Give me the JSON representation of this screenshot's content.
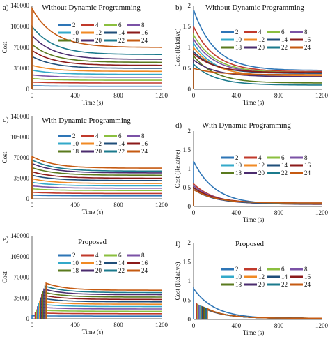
{
  "colors": [
    "#2e75b6",
    "#c0392b",
    "#8bbf3f",
    "#7b52a6",
    "#33a9c9",
    "#f08a24",
    "#1f4e79",
    "#8b1a1a",
    "#5a7a1e",
    "#4b2c6e",
    "#1b7a8c",
    "#c55a11"
  ],
  "legend_labels": [
    "2",
    "4",
    "6",
    "8",
    "10",
    "12",
    "14",
    "16",
    "18",
    "20",
    "22",
    "24"
  ],
  "chart_data": [
    {
      "type": "line",
      "panel_label": "a)",
      "title": "Without Dynamic Programming",
      "xlabel": "Time (s)",
      "ylabel": "Cost",
      "xlim": [
        0,
        1200
      ],
      "ylim": [
        0,
        140000
      ],
      "xticks": [
        "0",
        "400",
        "800",
        "1200"
      ],
      "yticks": [
        "0",
        "35000",
        "70000",
        "105000",
        "140000"
      ],
      "legend_position": "top-right",
      "series": [
        {
          "name": "2",
          "start": 6000,
          "end": 5000
        },
        {
          "name": "4",
          "start": 12000,
          "end": 10500
        },
        {
          "name": "6",
          "start": 18000,
          "end": 15000
        },
        {
          "name": "8",
          "start": 24000,
          "end": 20000
        },
        {
          "name": "10",
          "start": 32000,
          "end": 25000
        },
        {
          "name": "12",
          "start": 40000,
          "end": 30000
        },
        {
          "name": "14",
          "start": 55000,
          "end": 35000
        },
        {
          "name": "16",
          "start": 65000,
          "end": 40000
        },
        {
          "name": "18",
          "start": 75000,
          "end": 45000
        },
        {
          "name": "20",
          "start": 90000,
          "end": 50000
        },
        {
          "name": "22",
          "start": 105000,
          "end": 58000
        },
        {
          "name": "24",
          "start": 135000,
          "end": 70000
        }
      ]
    },
    {
      "type": "line",
      "panel_label": "b)",
      "title": "Without Dynamic Programming",
      "xlabel": "Time (s)",
      "ylabel": "Cost (Relative)",
      "xlim": [
        0,
        1200
      ],
      "ylim": [
        0,
        2
      ],
      "xticks": [
        "0",
        "400",
        "800",
        "1200"
      ],
      "yticks": [
        "0",
        "0.5",
        "1",
        "1.5",
        "2"
      ],
      "legend_position": "top-right",
      "series": [
        {
          "name": "2",
          "start": 1.9,
          "end": 0.45
        },
        {
          "name": "4",
          "start": 1.5,
          "end": 0.42
        },
        {
          "name": "6",
          "start": 1.3,
          "end": 0.4
        },
        {
          "name": "8",
          "start": 1.2,
          "end": 0.38
        },
        {
          "name": "10",
          "start": 1.1,
          "end": 0.3
        },
        {
          "name": "12",
          "start": 1.0,
          "end": 0.32
        },
        {
          "name": "14",
          "start": 0.9,
          "end": 0.38
        },
        {
          "name": "16",
          "start": 0.85,
          "end": 0.4
        },
        {
          "name": "18",
          "start": 0.8,
          "end": 0.15
        },
        {
          "name": "20",
          "start": 0.7,
          "end": 0.3
        },
        {
          "name": "22",
          "start": 0.6,
          "end": 0.1
        },
        {
          "name": "24",
          "start": 0.5,
          "end": 0.35
        }
      ]
    },
    {
      "type": "line",
      "panel_label": "c)",
      "title": "With Dynamic Programming",
      "xlabel": "Time (s)",
      "ylabel": "Cost",
      "xlim": [
        0,
        1200
      ],
      "ylim": [
        0,
        140000
      ],
      "xticks": [
        "0",
        "400",
        "800",
        "1200"
      ],
      "yticks": [
        "0",
        "35000",
        "70000",
        "105000",
        "140000"
      ],
      "legend_position": "top-right",
      "series": [
        {
          "name": "2",
          "start": 6000,
          "end": 5000
        },
        {
          "name": "4",
          "start": 11000,
          "end": 9000
        },
        {
          "name": "6",
          "start": 17000,
          "end": 14000
        },
        {
          "name": "8",
          "start": 22000,
          "end": 18000
        },
        {
          "name": "10",
          "start": 28000,
          "end": 22000
        },
        {
          "name": "12",
          "start": 34000,
          "end": 26000
        },
        {
          "name": "14",
          "start": 40000,
          "end": 31000
        },
        {
          "name": "16",
          "start": 46000,
          "end": 35000
        },
        {
          "name": "18",
          "start": 53000,
          "end": 40000
        },
        {
          "name": "20",
          "start": 60000,
          "end": 44000
        },
        {
          "name": "22",
          "start": 66000,
          "end": 47000
        },
        {
          "name": "24",
          "start": 72000,
          "end": 52000
        }
      ]
    },
    {
      "type": "line",
      "panel_label": "d)",
      "title": "With Dynamic Programming",
      "xlabel": "Time (s)",
      "ylabel": "Cost (Relative)",
      "xlim": [
        0,
        1200
      ],
      "ylim": [
        0,
        2
      ],
      "xticks": [
        "0",
        "400",
        "800",
        "1200"
      ],
      "yticks": [
        "0",
        "0.5",
        "1",
        "1.5",
        "2"
      ],
      "legend_position": "top-right",
      "series": [
        {
          "name": "2",
          "start": 1.2,
          "end": 0.05
        },
        {
          "name": "4",
          "start": 0.6,
          "end": 0.06
        },
        {
          "name": "6",
          "start": 0.55,
          "end": 0.07
        },
        {
          "name": "8",
          "start": 0.55,
          "end": 0.08
        },
        {
          "name": "10",
          "start": 0.5,
          "end": 0.07
        },
        {
          "name": "12",
          "start": 0.5,
          "end": 0.08
        },
        {
          "name": "14",
          "start": 0.5,
          "end": 0.07
        },
        {
          "name": "16",
          "start": 0.5,
          "end": 0.09
        },
        {
          "name": "18",
          "start": 0.45,
          "end": 0.08
        },
        {
          "name": "20",
          "start": 0.45,
          "end": 0.07
        },
        {
          "name": "22",
          "start": 0.45,
          "end": 0.08
        },
        {
          "name": "24",
          "start": 0.45,
          "end": 0.09
        }
      ]
    },
    {
      "type": "line",
      "panel_label": "e)",
      "title": "Proposed",
      "xlabel": "Time (s)",
      "ylabel": "Cost",
      "xlim": [
        0,
        1200
      ],
      "ylim": [
        0,
        140000
      ],
      "xticks": [
        "0",
        "400",
        "800",
        "1200"
      ],
      "yticks": [
        "0",
        "35000",
        "70000",
        "105000",
        "140000"
      ],
      "legend_position": "top-right",
      "series": [
        {
          "name": "2",
          "start": 5000,
          "end": 4500
        },
        {
          "name": "4",
          "start": 10000,
          "end": 8500
        },
        {
          "name": "6",
          "start": 15000,
          "end": 12500
        },
        {
          "name": "8",
          "start": 20000,
          "end": 16500
        },
        {
          "name": "10",
          "start": 25000,
          "end": 20500
        },
        {
          "name": "12",
          "start": 30000,
          "end": 24500
        },
        {
          "name": "14",
          "start": 35000,
          "end": 28500
        },
        {
          "name": "16",
          "start": 40000,
          "end": 32500
        },
        {
          "name": "18",
          "start": 45000,
          "end": 36500
        },
        {
          "name": "20",
          "start": 50000,
          "end": 40500
        },
        {
          "name": "22",
          "start": 55000,
          "end": 44000
        },
        {
          "name": "24",
          "start": 60000,
          "end": 48000
        }
      ]
    },
    {
      "type": "line",
      "panel_label": "f)",
      "title": "Proposed",
      "xlabel": "Time (s)",
      "ylabel": "Cost (Relative)",
      "xlim": [
        0,
        1200
      ],
      "ylim": [
        0,
        2
      ],
      "xticks": [
        "0",
        "400",
        "800",
        "1200"
      ],
      "yticks": [
        "0",
        "0.5",
        "1",
        "1.5",
        "2"
      ],
      "legend_position": "top-right",
      "series": [
        {
          "name": "2",
          "start": 0.8,
          "end": 0.02
        },
        {
          "name": "4",
          "start": 0.4,
          "end": 0.03
        },
        {
          "name": "6",
          "start": 0.38,
          "end": 0.03
        },
        {
          "name": "8",
          "start": 0.36,
          "end": 0.03
        },
        {
          "name": "10",
          "start": 0.35,
          "end": 0.03
        },
        {
          "name": "12",
          "start": 0.34,
          "end": 0.03
        },
        {
          "name": "14",
          "start": 0.33,
          "end": 0.03
        },
        {
          "name": "16",
          "start": 0.32,
          "end": 0.03
        },
        {
          "name": "18",
          "start": 0.31,
          "end": 0.03
        },
        {
          "name": "20",
          "start": 0.3,
          "end": 0.03
        },
        {
          "name": "22",
          "start": 0.29,
          "end": 0.03
        },
        {
          "name": "24",
          "start": 0.28,
          "end": 0.03
        }
      ]
    }
  ]
}
